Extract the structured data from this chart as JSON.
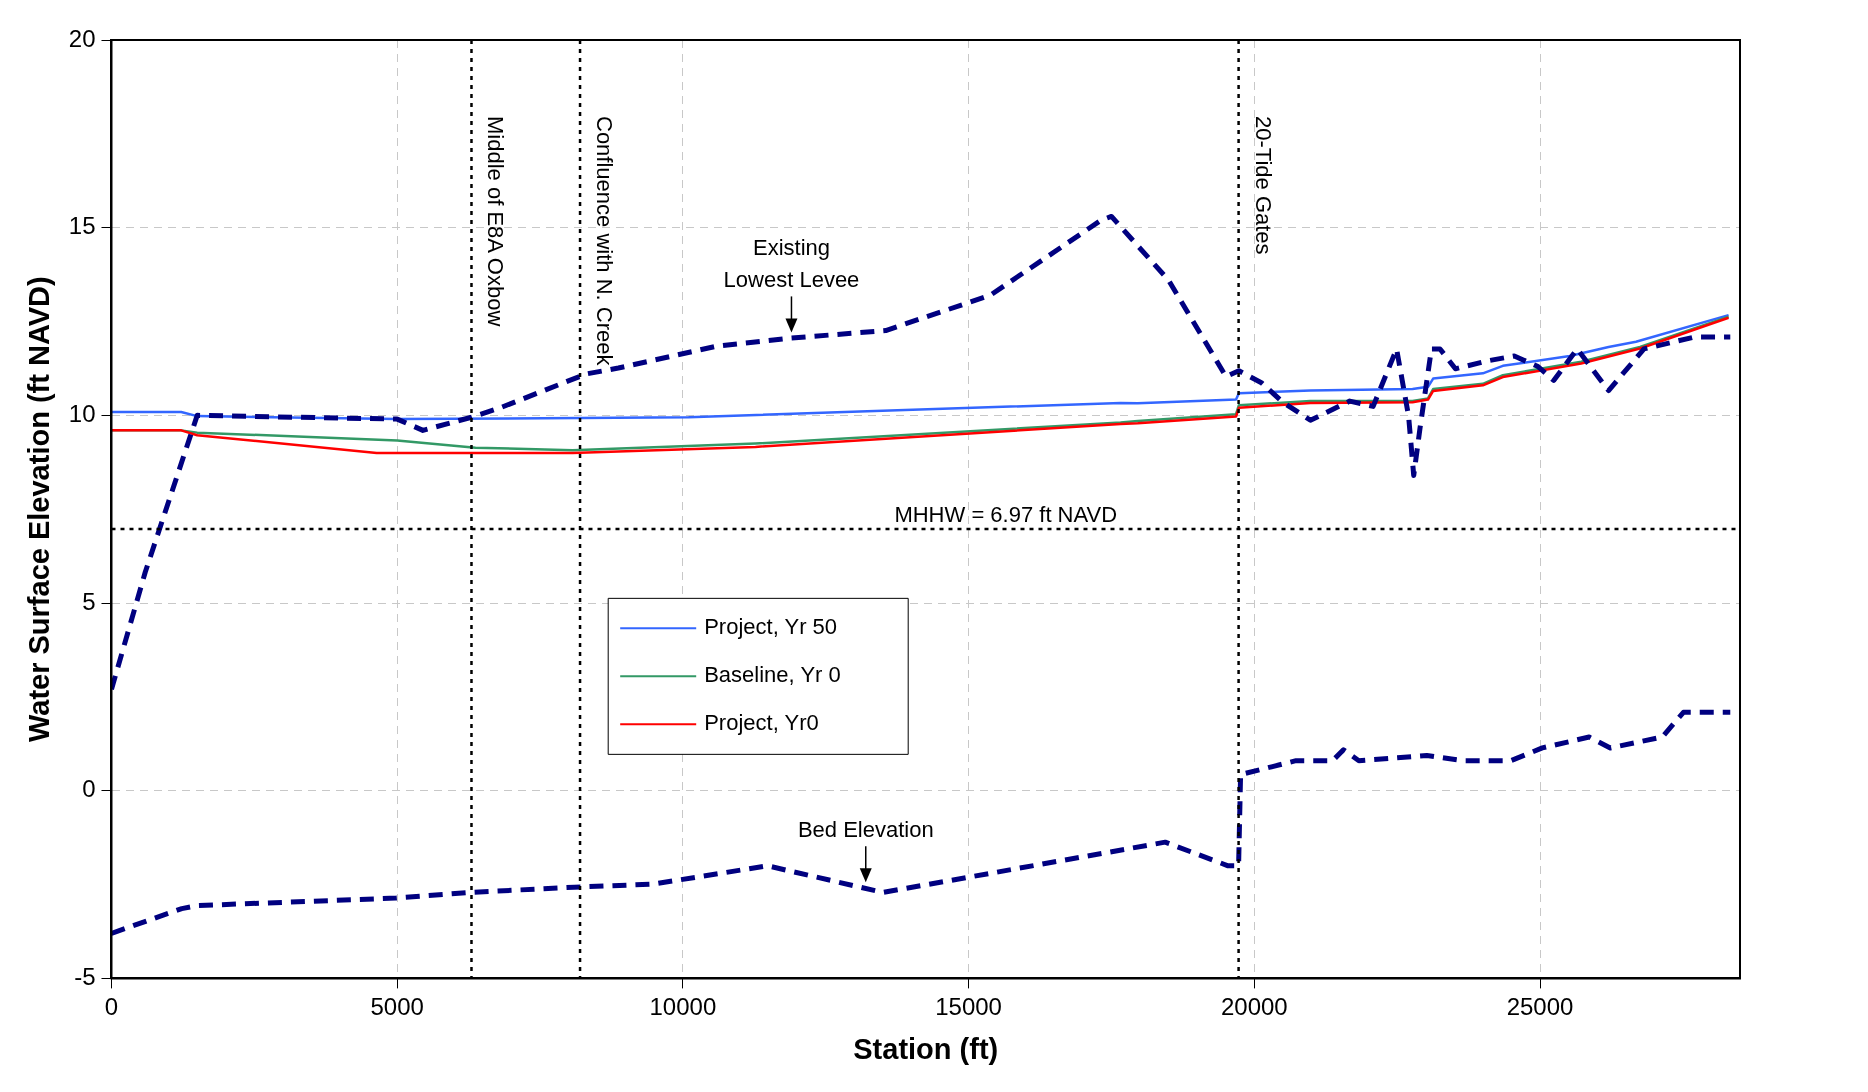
{
  "chart_data": {
    "type": "line",
    "xlabel": "Station (ft)",
    "ylabel": "Water Surface Elevation (ft NAVD)",
    "xlim": [
      0,
      28500
    ],
    "xticks": [
      0,
      5000,
      10000,
      15000,
      20000,
      25000
    ],
    "ylim": [
      -5,
      20
    ],
    "yticks": [
      -5,
      0,
      5,
      10,
      15,
      20
    ],
    "grid": true,
    "legend": "left",
    "marker": "none",
    "series": [
      {
        "name": "Project, Yr 50",
        "color": "#3366ff",
        "x": [
          0,
          1220,
          1500,
          5000,
          10100,
          17660,
          17960,
          19680,
          19730,
          20980,
          22770,
          23040,
          23130,
          24000,
          24350,
          25520,
          26200,
          26680,
          28300
        ],
        "values": [
          10.09,
          10.09,
          9.98,
          9.9,
          9.95,
          10.33,
          10.32,
          10.42,
          10.59,
          10.66,
          10.7,
          10.76,
          10.98,
          11.12,
          11.32,
          11.58,
          11.82,
          11.96,
          12.67
        ]
      },
      {
        "name": "Baseline, Yr 0",
        "color": "#339966",
        "x": [
          0,
          1220,
          1500,
          5000,
          6370,
          8070,
          11270,
          17660,
          17960,
          19680,
          19730,
          20980,
          22770,
          23040,
          23130,
          24000,
          24350,
          25720,
          26750,
          28300
        ],
        "values": [
          9.6,
          9.6,
          9.54,
          9.33,
          9.14,
          9.07,
          9.25,
          9.81,
          9.85,
          10.03,
          10.27,
          10.38,
          10.38,
          10.45,
          10.7,
          10.84,
          11.07,
          11.43,
          11.82,
          12.63
        ]
      },
      {
        "name": "Project, Yr0",
        "color": "#ff0000",
        "x": [
          0,
          1220,
          1500,
          4640,
          8070,
          11270,
          17660,
          17960,
          19680,
          19730,
          20980,
          22770,
          23040,
          23130,
          24000,
          24350,
          25720,
          26750,
          28300
        ],
        "values": [
          9.6,
          9.6,
          9.47,
          9.0,
          9.0,
          9.16,
          9.77,
          9.79,
          9.97,
          10.2,
          10.33,
          10.35,
          10.42,
          10.65,
          10.8,
          11.02,
          11.38,
          11.78,
          12.6
        ]
      },
      {
        "color": "#000080",
        "line_style": "dashed",
        "x": [
          0,
          590,
          1500,
          5000,
          5450,
          6300,
          6800,
          8300,
          8870,
          10580,
          11830,
          13550,
          15380,
          17320,
          17500,
          18500,
          19505,
          19730,
          20124,
          20500,
          20982,
          21670,
          22080,
          22490,
          22700,
          22790,
          22900,
          23100,
          23250,
          23520,
          24070,
          24550,
          24965,
          25240,
          25650,
          26200,
          26820,
          27710,
          28330
        ],
        "values": [
          2.7,
          5.82,
          10.0,
          9.9,
          9.6,
          9.95,
          10.2,
          11.1,
          11.26,
          11.84,
          12.05,
          12.26,
          13.2,
          15.2,
          15.3,
          13.6,
          11.03,
          11.19,
          10.87,
          10.35,
          9.87,
          10.38,
          10.24,
          11.77,
          9.98,
          8.4,
          9.66,
          11.77,
          11.77,
          11.24,
          11.45,
          11.58,
          11.3,
          10.93,
          11.77,
          10.66,
          11.77,
          12.09,
          12.09
        ]
      },
      {
        "color": "#000080",
        "line_style": "dashed",
        "x": [
          0,
          1230,
          1500,
          4980,
          6260,
          8100,
          9470,
          11480,
          13500,
          15050,
          18440,
          19540,
          19725,
          19760,
          20730,
          21370,
          21560,
          21830,
          23020,
          23660,
          24490,
          25040,
          25860,
          26230,
          27140,
          27510,
          28330
        ],
        "values": [
          -3.8,
          -3.14,
          -3.06,
          -2.86,
          -2.71,
          -2.57,
          -2.49,
          -2.0,
          -2.71,
          -2.29,
          -1.37,
          -2.0,
          -2.0,
          0.43,
          0.8,
          0.8,
          1.09,
          0.8,
          0.94,
          0.8,
          0.8,
          1.14,
          1.43,
          1.14,
          1.43,
          2.09,
          2.09
        ]
      }
    ],
    "ref_lines": [
      {
        "axis": "x",
        "value": 6300,
        "label": "Middle of E8A Oxbow",
        "color": "#000000",
        "line_style": "dotted"
      },
      {
        "axis": "x",
        "value": 8200,
        "label": "Confluence with N. Creek",
        "color": "#000000",
        "line_style": "dotted"
      },
      {
        "axis": "x",
        "value": 19725,
        "label": "20-Tide Gates",
        "color": "#000000",
        "line_style": "dotted"
      },
      {
        "axis": "y",
        "value": 6.97,
        "label": "MHHW = 6.97 ft NAVD",
        "color": "#000000",
        "line_style": "dotted"
      }
    ],
    "annotations": [
      {
        "text": "Existing Lowest Levee",
        "x": 11900,
        "y": 12.05
      },
      {
        "text": "Bed Elevation",
        "x": 13200,
        "y": -2.6
      }
    ]
  }
}
